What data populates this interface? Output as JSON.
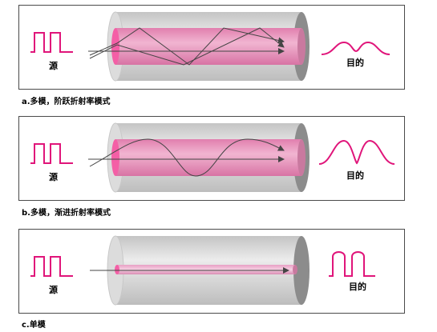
{
  "colors": {
    "signal": "#e0157a",
    "core": "#e58fb8",
    "core_light": "#f5c4dc",
    "cladding": "#d9d9d9",
    "end_dark": "#8c8c8c",
    "ray": "#444444"
  },
  "panels": [
    {
      "source_label": "源",
      "dest_label": "目的",
      "caption": "a.多模，阶跃折射率模式",
      "mode": "step-index"
    },
    {
      "source_label": "源",
      "dest_label": "目的",
      "caption": "b.多模，渐进折射率模式",
      "mode": "graded-index"
    },
    {
      "source_label": "源",
      "dest_label": "目的",
      "caption": "c.单模",
      "mode": "single-mode"
    }
  ]
}
